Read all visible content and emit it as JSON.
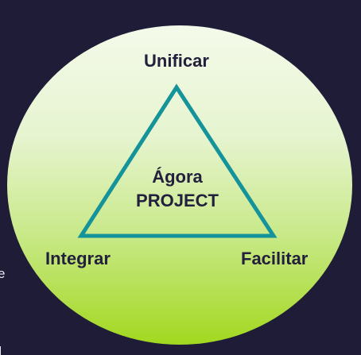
{
  "diagram": {
    "vertices": {
      "top": "Unificar",
      "left": "Integrar",
      "right": "Facilitar"
    },
    "center": {
      "line1": "Ágora",
      "line2": "PROJECT"
    }
  },
  "edge_fragment": "e",
  "colors": {
    "background": "#1f1c38",
    "circle_top": "#f4faea",
    "circle_bottom": "#a2d81f",
    "triangle_stroke": "#14939a",
    "text": "#23203d"
  }
}
